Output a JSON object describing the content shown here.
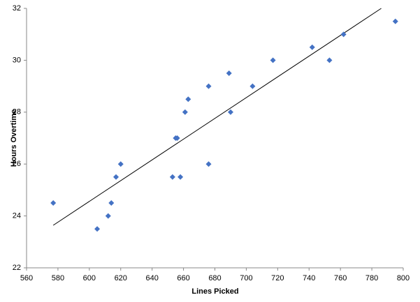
{
  "chart_data": {
    "type": "scatter",
    "x_label": "Lines Picked",
    "y_label": "Hours Overtime",
    "color": "#4472c4",
    "grid": false,
    "x": [
      577,
      605,
      612,
      614,
      617,
      620,
      653,
      655,
      656,
      658,
      661,
      663,
      676,
      676,
      689,
      690,
      704,
      717,
      742,
      753,
      762,
      795
    ],
    "values": [
      24.5,
      23.5,
      24.0,
      24.5,
      25.5,
      26.0,
      25.5,
      27.0,
      27.0,
      25.5,
      28.0,
      28.5,
      29.0,
      26.0,
      29.5,
      28.0,
      29.0,
      30.0,
      30.5,
      30.0,
      31.0,
      31.5
    ],
    "trendline": {
      "x": [
        577,
        786
      ],
      "y": [
        23.64,
        32.0
      ],
      "color": "#000000"
    },
    "xlim": [
      560,
      800
    ],
    "xticks": [
      560,
      580,
      600,
      620,
      640,
      660,
      680,
      700,
      720,
      740,
      760,
      780,
      800
    ],
    "ylim": [
      22,
      32
    ],
    "yticks": [
      22,
      24,
      26,
      28,
      30,
      32
    ]
  }
}
